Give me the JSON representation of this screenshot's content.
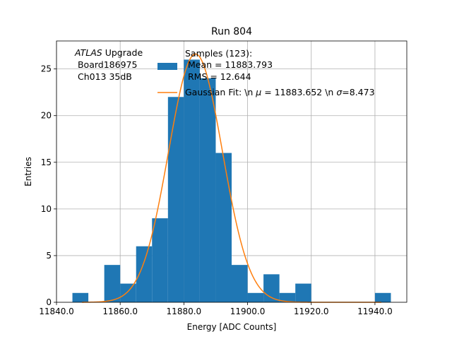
{
  "chart_data": {
    "type": "bar",
    "title": "Run 804",
    "xlabel": "Energy [ADC Counts]",
    "ylabel": "Entries",
    "xlim": [
      11840,
      11950
    ],
    "ylim": [
      0,
      28
    ],
    "grid": true,
    "x_ticks": [
      11840,
      11860,
      11880,
      11900,
      11920,
      11940
    ],
    "x_tick_labels": [
      "11840.0",
      "11860.0",
      "11880.0",
      "11900.0",
      "11920.0",
      "11940.0"
    ],
    "y_ticks": [
      0,
      5,
      10,
      15,
      20,
      25
    ],
    "y_tick_labels": [
      "0",
      "5",
      "10",
      "15",
      "20",
      "25"
    ],
    "bin_edges": [
      11845,
      11850,
      11855,
      11860,
      11865,
      11870,
      11875,
      11880,
      11885,
      11890,
      11895,
      11900,
      11905,
      11910,
      11915,
      11920,
      11925,
      11930,
      11935,
      11940,
      11945
    ],
    "bin_counts": [
      1,
      0,
      4,
      2,
      6,
      9,
      22,
      26,
      24,
      16,
      4,
      1,
      3,
      1,
      2,
      0,
      0,
      0,
      0,
      1
    ],
    "histogram_color": "#1f77b4",
    "fit": {
      "type": "gaussian",
      "mu": 11883.652,
      "sigma": 8.473,
      "amplitude": 26.6,
      "x_range": [
        11848,
        11942
      ],
      "color": "#ff7f0e"
    },
    "annotation": {
      "italic": "ATLAS",
      "rest": " Upgrade",
      "line2": " Board186975",
      "line3": " Ch013 35dB"
    },
    "legend": {
      "placement": "top-center",
      "histogram_lines": [
        "Samples (123):",
        " Mean = 11883.793",
        " RMS = 12.644"
      ],
      "fit_label_prefix": "Gaussian Fit: \\n ",
      "mu_symbol": "μ",
      "mu_text": " = 11883.652 \\n ",
      "sigma_symbol": "σ",
      "sigma_text": "=8.473"
    }
  }
}
